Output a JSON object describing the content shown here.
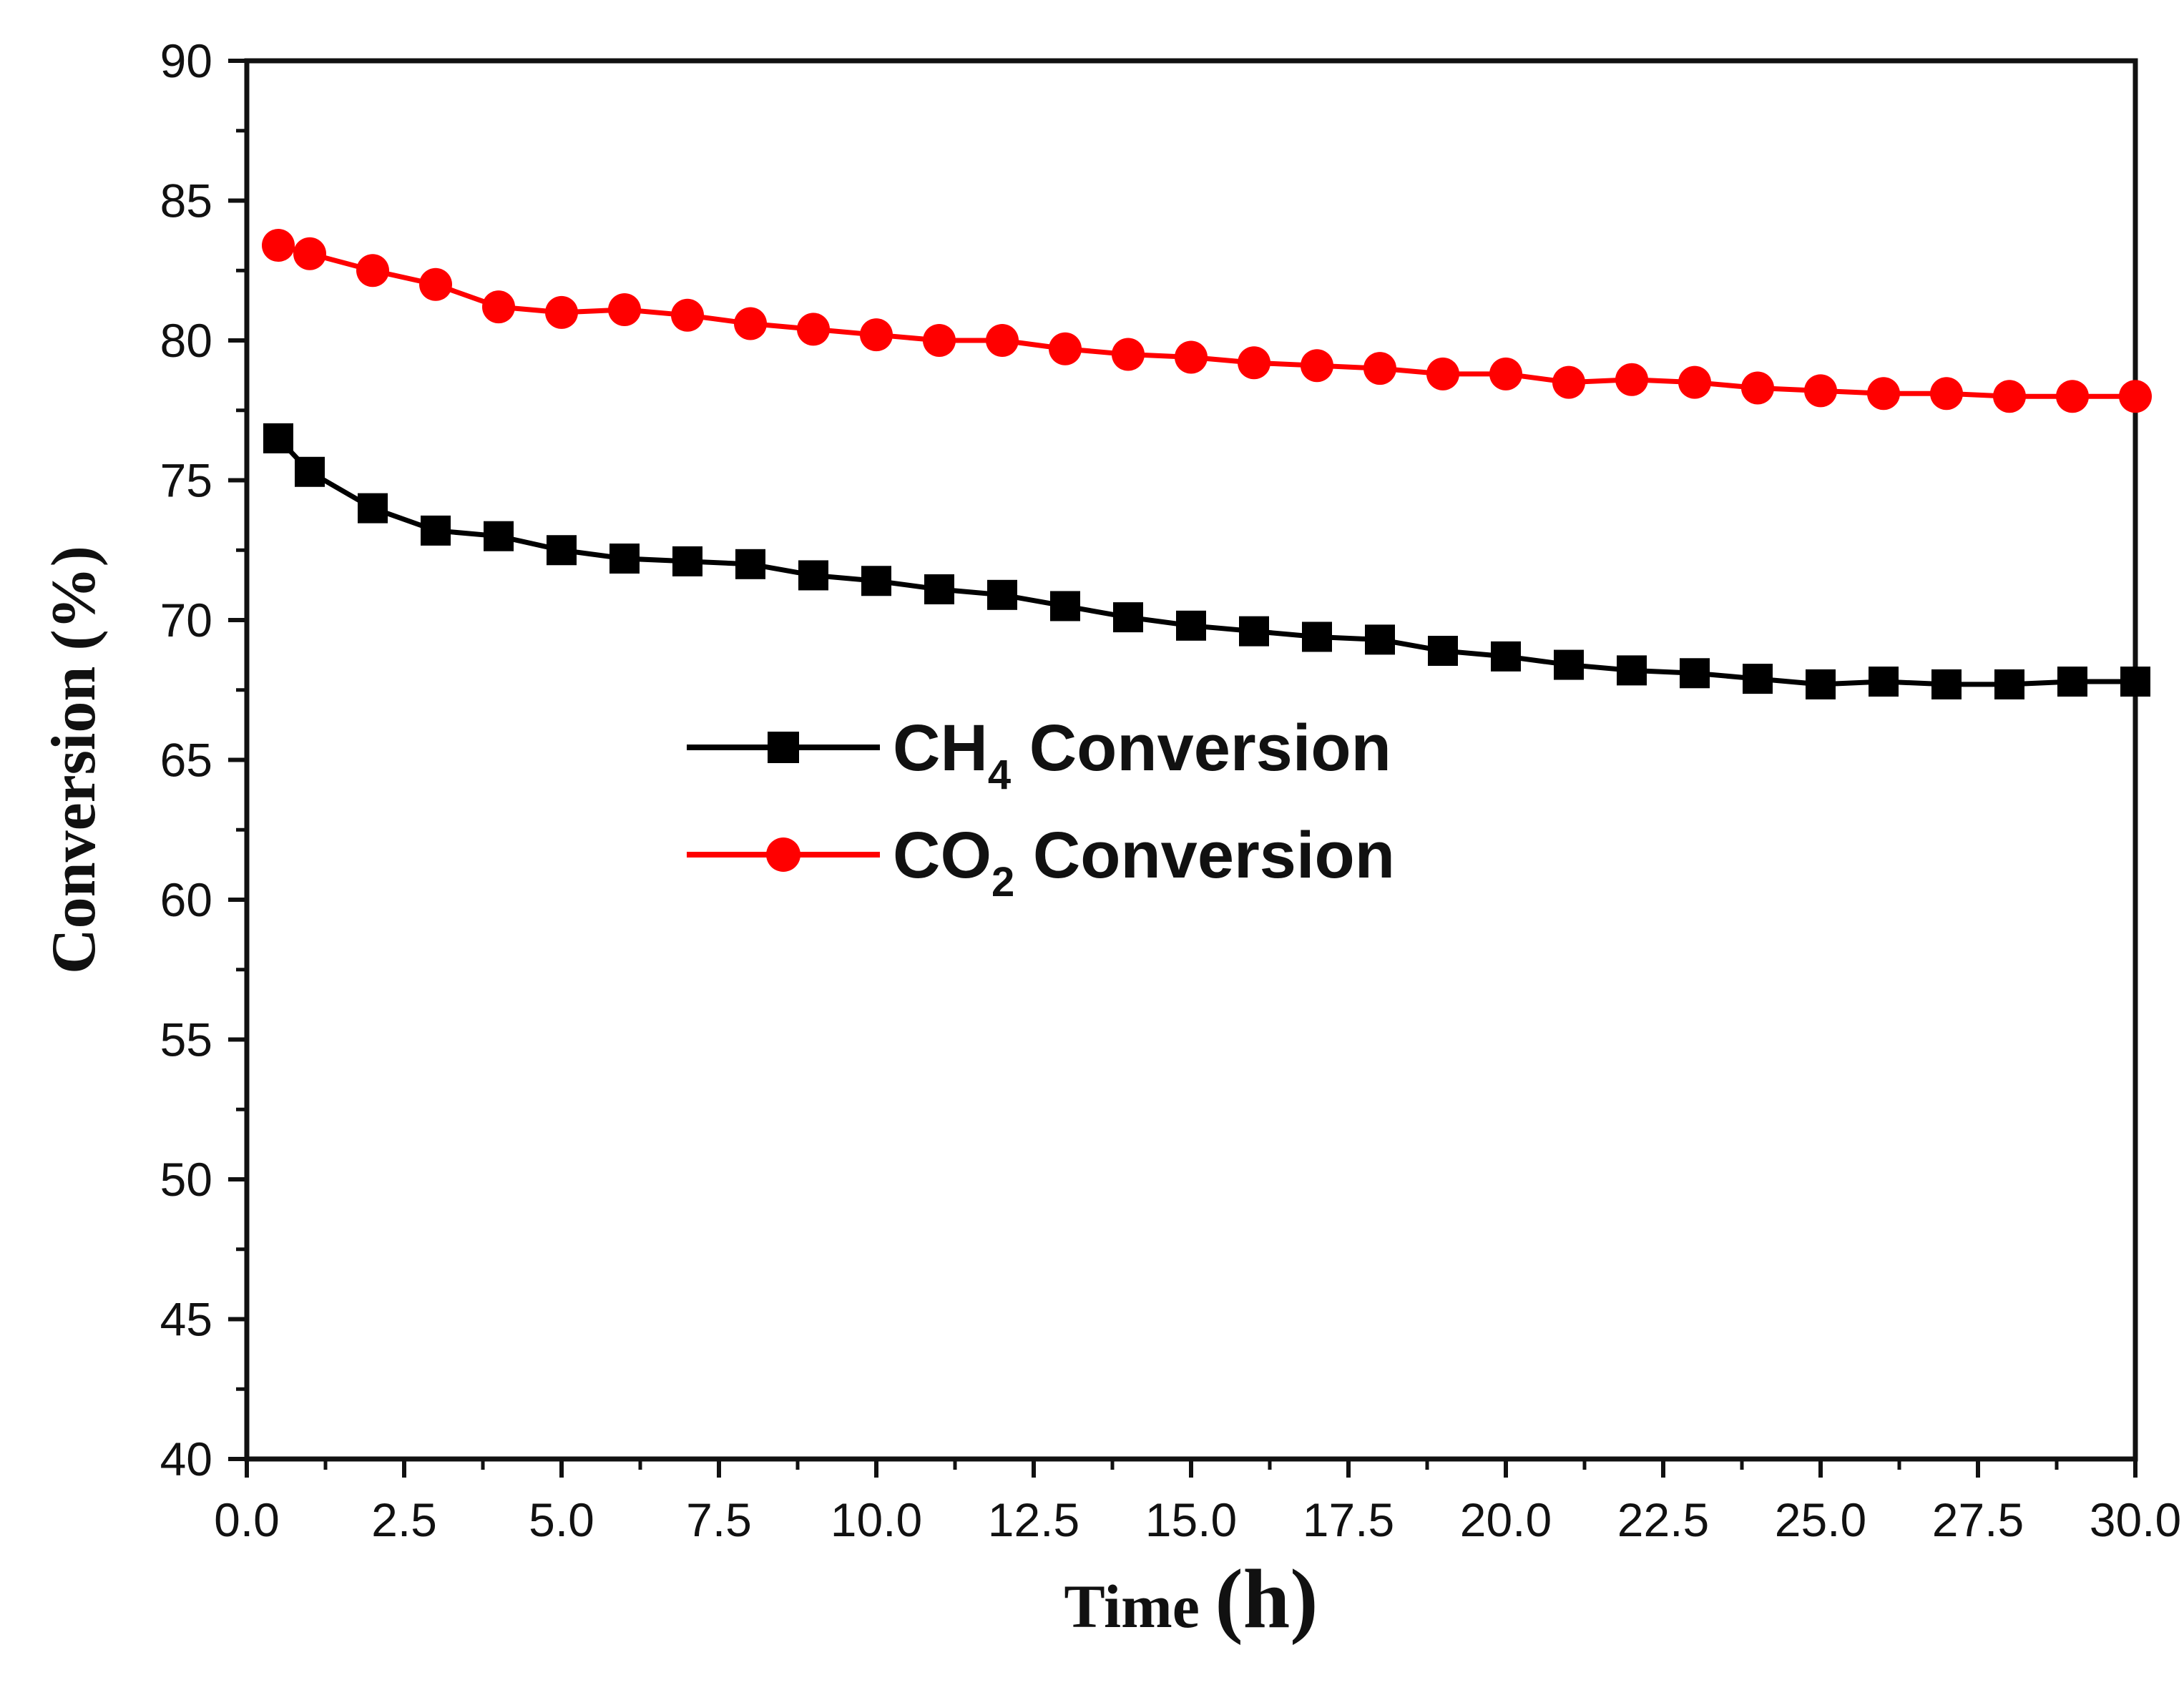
{
  "chart_data": {
    "type": "line",
    "title": "",
    "xlabel": "Time",
    "xlabel_unit": "(h)",
    "ylabel": "Conversion (%)",
    "xlim": [
      0,
      30
    ],
    "ylim": [
      40,
      90
    ],
    "x_ticks": [
      0,
      2.5,
      5,
      7.5,
      10,
      12.5,
      15,
      17.5,
      20,
      22.5,
      25,
      27.5,
      30
    ],
    "x_tick_labels": [
      "0.0",
      "2.5",
      "5.0",
      "7.5",
      "10.0",
      "12.5",
      "15.0",
      "17.5",
      "20.0",
      "22.5",
      "25.0",
      "27.5",
      "30.0"
    ],
    "y_ticks": [
      40,
      45,
      50,
      55,
      60,
      65,
      70,
      75,
      80,
      85,
      90
    ],
    "y_tick_labels": [
      "40",
      "45",
      "50",
      "55",
      "60",
      "65",
      "70",
      "75",
      "80",
      "85",
      "90"
    ],
    "grid": false,
    "legend_position": "center",
    "x": [
      0.5,
      1,
      2,
      3,
      4,
      5,
      6,
      7,
      8,
      9,
      10,
      11,
      12,
      13,
      14,
      15,
      16,
      17,
      18,
      19,
      20,
      21,
      22,
      23,
      24,
      25,
      26,
      27,
      28,
      29,
      30
    ],
    "series": [
      {
        "name": "CH4 Conversion",
        "label_main": "CH",
        "label_sub": "4",
        "label_rest": " Conversion",
        "color": "#000000",
        "marker": "square",
        "values": [
          76.5,
          75.3,
          74.0,
          73.2,
          73.0,
          72.5,
          72.2,
          72.1,
          72.0,
          71.6,
          71.4,
          71.1,
          70.9,
          70.5,
          70.1,
          69.8,
          69.6,
          69.4,
          69.3,
          68.9,
          68.7,
          68.4,
          68.2,
          68.1,
          67.9,
          67.7,
          67.8,
          67.7,
          67.7,
          67.8,
          67.8
        ]
      },
      {
        "name": "CO2 Conversion",
        "label_main": "CO",
        "label_sub": "2",
        "label_rest": " Conversion",
        "color": "#ff0000",
        "marker": "circle",
        "values": [
          83.4,
          83.1,
          82.5,
          82.0,
          81.2,
          81.0,
          81.1,
          80.9,
          80.6,
          80.4,
          80.2,
          80.0,
          80.0,
          79.7,
          79.5,
          79.4,
          79.2,
          79.1,
          79.0,
          78.8,
          78.8,
          78.5,
          78.6,
          78.5,
          78.3,
          78.2,
          78.1,
          78.1,
          78.0,
          78.0,
          78.0
        ]
      }
    ]
  }
}
